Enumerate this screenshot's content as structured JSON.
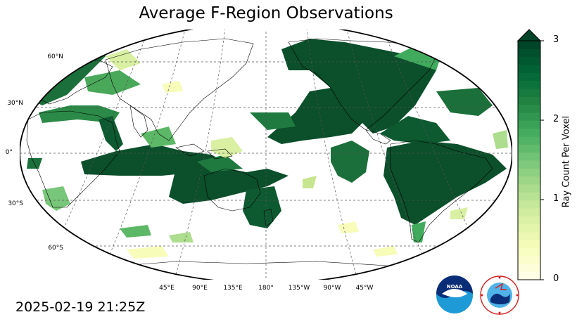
{
  "title": "Average F-Region Observations",
  "timestamp": "2025-02-19 21:25Z",
  "colorbar": {
    "label": "Ray Count Per Voxel",
    "ticks": [
      "0",
      "1",
      "2",
      "3"
    ],
    "min": 0,
    "max": 3,
    "extend": "max",
    "colors": [
      "#ffffe5",
      "#f7fcb9",
      "#d9f0a3",
      "#addd8e",
      "#78c679",
      "#41ab5d",
      "#238443",
      "#006837",
      "#004529"
    ]
  },
  "lat_labels": [
    "60°N",
    "30°N",
    "0°",
    "30°S",
    "60°S"
  ],
  "lon_labels": [
    "45°E",
    "90°E",
    "135°E",
    "180°",
    "135°W",
    "90°W",
    "45°W"
  ],
  "logos": [
    "noaa-logo",
    "national-weather-service-logo"
  ]
}
